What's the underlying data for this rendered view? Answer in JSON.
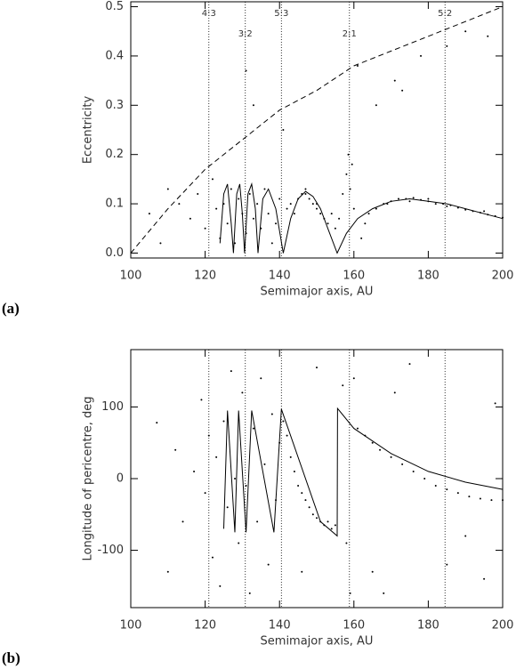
{
  "chart_data": [
    {
      "type": "scatter",
      "panel_label": "(a)",
      "xlabel": "Semimajor axis, AU",
      "ylabel": "Eccentricity",
      "xlim": [
        100,
        200
      ],
      "ylim": [
        -0.01,
        0.51
      ],
      "xticks": [
        100,
        120,
        140,
        160,
        180,
        200
      ],
      "yticks": [
        {
          "value": 0,
          "label": "0.0"
        },
        0.1,
        0.2,
        0.3,
        0.4,
        0.5
      ],
      "resonances": [
        {
          "label": "4:3",
          "x": 121
        },
        {
          "label": "3:2",
          "x": 130.8
        },
        {
          "label": "5:3",
          "x": 140.5
        },
        {
          "label": "2:1",
          "x": 158.8
        },
        {
          "label": "5:2",
          "x": 184.5
        }
      ],
      "points": {
        "x": [
          105,
          108,
          110,
          113,
          116,
          118,
          120,
          122,
          123,
          124,
          125,
          126,
          127,
          128,
          129,
          130,
          131,
          131,
          132,
          133,
          133,
          134,
          135,
          136,
          137,
          138,
          139,
          140,
          141,
          142,
          143,
          144,
          145,
          146,
          147,
          148,
          149,
          150,
          151,
          152,
          153,
          154,
          155,
          156,
          157,
          158,
          158.5,
          159,
          159.5,
          160,
          161,
          162,
          164,
          166,
          168,
          170,
          172,
          174,
          176,
          178,
          180,
          182,
          184,
          186,
          188,
          190,
          192,
          194,
          196,
          198,
          200,
          171,
          173,
          166,
          190,
          196,
          185,
          178,
          180,
          175,
          185,
          195,
          169,
          163,
          150,
          147
        ],
        "y": [
          0.08,
          0.02,
          0.13,
          0.1,
          0.07,
          0.12,
          0.05,
          0.15,
          0.09,
          0.03,
          0.1,
          0.06,
          0.13,
          0.02,
          0.11,
          0.08,
          0.37,
          0.04,
          0.12,
          0.3,
          0.07,
          0.1,
          0.05,
          0.13,
          0.08,
          0.02,
          0.06,
          0.11,
          0.25,
          0.09,
          0.1,
          0.08,
          0.11,
          0.12,
          0.12,
          0.11,
          0.1,
          0.09,
          0.08,
          0.07,
          0.06,
          0.08,
          0.05,
          0.07,
          0.12,
          0.16,
          0.2,
          0.13,
          0.18,
          0.09,
          0.38,
          0.03,
          0.08,
          0.09,
          0.1,
          0.105,
          0.11,
          0.11,
          0.112,
          0.108,
          0.105,
          0.1,
          0.1,
          0.097,
          0.092,
          0.088,
          0.085,
          0.082,
          0.078,
          0.075,
          0.072,
          0.35,
          0.33,
          0.3,
          0.45,
          0.44,
          0.42,
          0.4,
          0.11,
          0.105,
          0.095,
          0.085,
          0.1,
          0.06,
          0.1,
          0.13
        ]
      },
      "model": {
        "x": [
          124,
          125,
          126,
          127,
          127.6,
          128.5,
          129.3,
          130,
          130.6,
          131.5,
          132.5,
          133.5,
          134.2,
          135.5,
          137,
          139,
          141,
          143,
          145,
          147,
          149,
          151,
          153,
          155.5,
          158,
          161,
          165,
          170,
          175,
          180,
          185,
          190,
          195,
          200
        ],
        "y": [
          0.02,
          0.12,
          0.14,
          0.06,
          0.0,
          0.12,
          0.14,
          0.08,
          0.0,
          0.12,
          0.14,
          0.09,
          0.0,
          0.11,
          0.13,
          0.09,
          0.0,
          0.07,
          0.11,
          0.125,
          0.115,
          0.09,
          0.05,
          0.0,
          0.04,
          0.07,
          0.09,
          0.105,
          0.11,
          0.105,
          0.1,
          0.09,
          0.08,
          0.07
        ]
      },
      "dashed": {
        "x": [
          100,
          110,
          120,
          130,
          140,
          150,
          160,
          170,
          180,
          190,
          200
        ],
        "y": [
          0.0,
          0.09,
          0.17,
          0.23,
          0.29,
          0.33,
          0.38,
          0.41,
          0.44,
          0.47,
          0.5
        ]
      }
    },
    {
      "type": "scatter",
      "panel_label": "(b)",
      "xlabel": "Semimajor axis, AU",
      "ylabel": "Longitude of pericentre, deg",
      "xlim": [
        100,
        200
      ],
      "ylim": [
        -180,
        180
      ],
      "xticks": [
        100,
        120,
        140,
        160,
        180,
        200
      ],
      "yticks": [
        -100,
        0,
        100
      ],
      "resonances": [
        {
          "x": 121
        },
        {
          "x": 130.8
        },
        {
          "x": 140.5
        },
        {
          "x": 158.8
        },
        {
          "x": 184.5
        }
      ],
      "points": {
        "x": [
          107,
          110,
          112,
          114,
          117,
          119,
          120,
          121,
          122,
          123,
          124,
          125,
          126,
          127,
          128,
          129,
          130,
          131,
          132,
          133,
          134,
          135,
          136,
          137,
          138,
          139,
          140,
          141,
          142,
          143,
          144,
          145,
          146,
          147,
          148,
          149,
          150,
          151,
          152,
          153,
          154,
          155,
          157,
          158,
          159,
          160,
          161,
          163,
          165,
          167,
          170,
          173,
          176,
          179,
          182,
          185,
          188,
          191,
          194,
          197,
          200,
          165,
          168,
          175,
          185,
          190,
          195,
          198,
          171,
          150,
          146
        ],
        "y": [
          78,
          -130,
          40,
          -60,
          10,
          110,
          -20,
          60,
          -110,
          30,
          -150,
          80,
          -40,
          150,
          0,
          -90,
          120,
          -10,
          -160,
          70,
          -60,
          140,
          20,
          -120,
          90,
          -30,
          50,
          80,
          60,
          30,
          10,
          -10,
          -20,
          -30,
          -40,
          -50,
          -55,
          -60,
          -65,
          -60,
          -70,
          -65,
          130,
          -90,
          -160,
          140,
          70,
          60,
          50,
          40,
          30,
          20,
          10,
          0,
          -10,
          -15,
          -20,
          -25,
          -28,
          -30,
          -30,
          -130,
          -160,
          160,
          -120,
          -80,
          -140,
          105,
          120,
          155,
          -130
        ]
      },
      "model": {
        "x": [
          125,
          126,
          128,
          129,
          131,
          132.5,
          138.5,
          140.5,
          151,
          155.5,
          155.6,
          160,
          170,
          180,
          190,
          200
        ],
        "y": [
          -70,
          95,
          -75,
          95,
          -75,
          95,
          -75,
          97,
          -60,
          -80,
          98,
          70,
          35,
          10,
          -5,
          -15
        ]
      }
    }
  ]
}
